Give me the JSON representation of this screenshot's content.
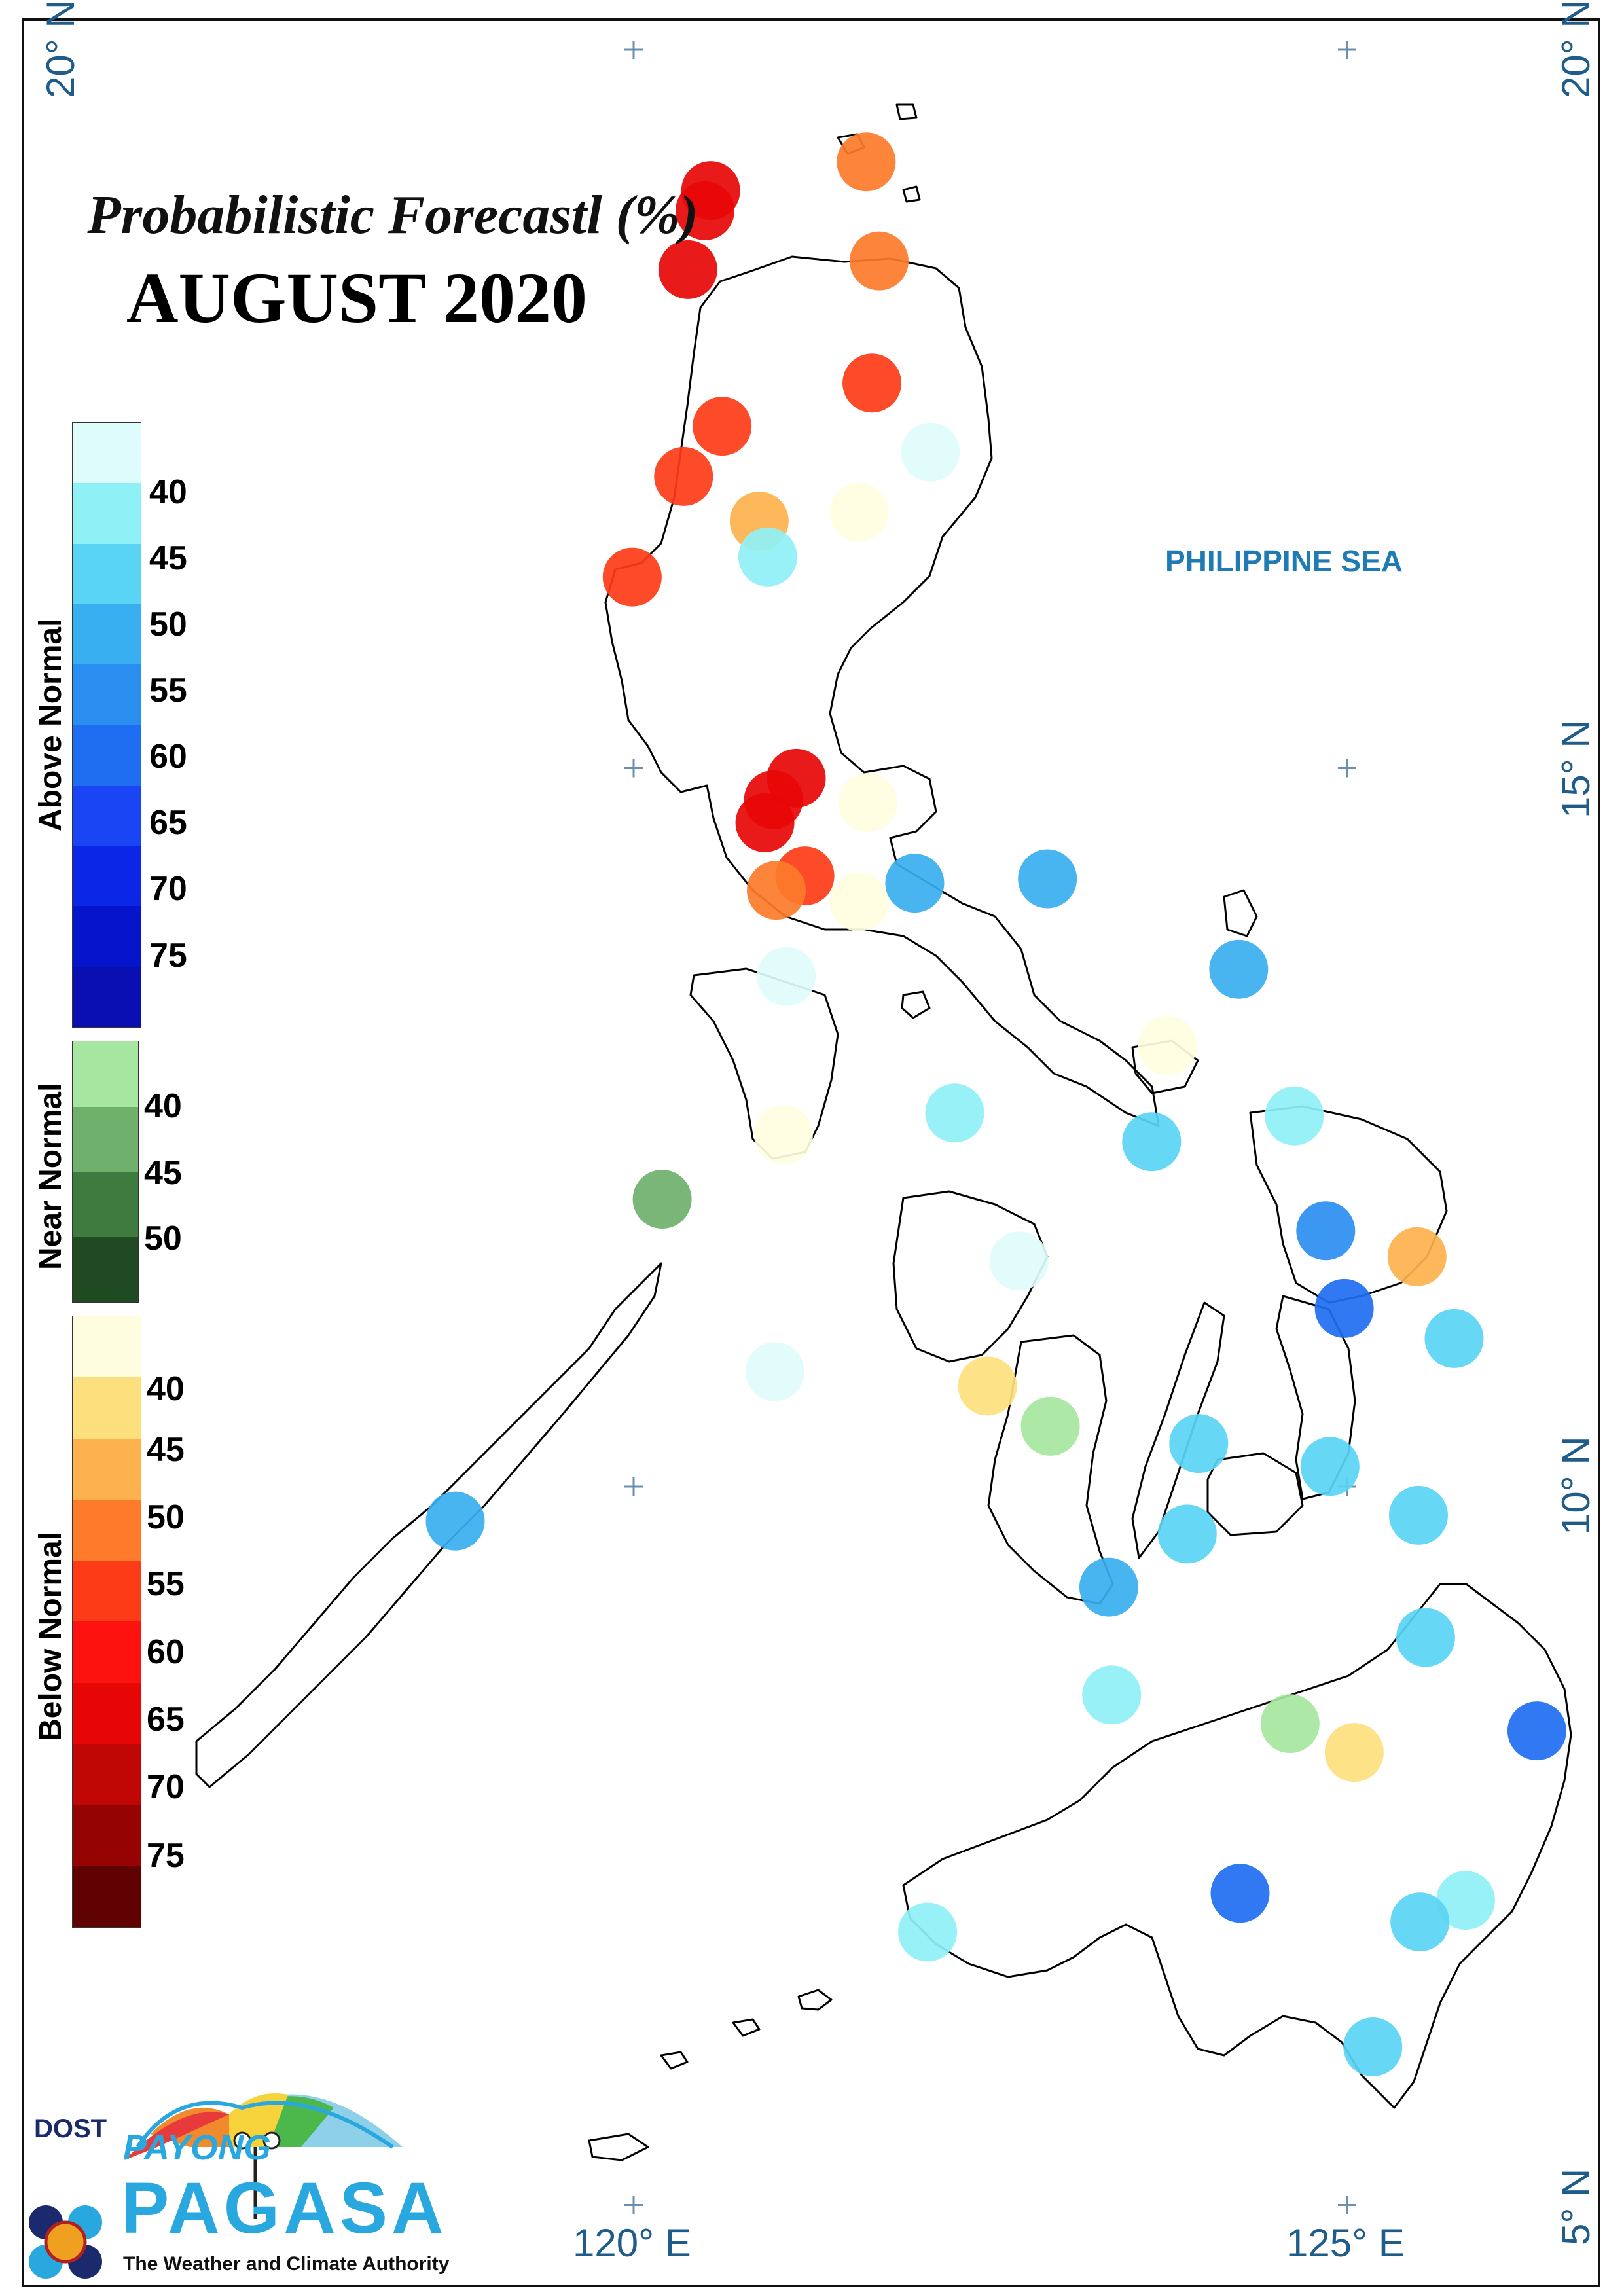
{
  "title": "Probabilistic Forecastl (%)",
  "subtitle": "AUGUST 2020",
  "sea_label": "PHILIPPINE SEA",
  "coords": {
    "lat_20_left": "20° N",
    "lat_20_right": "20° N",
    "lat_15": "15° N",
    "lat_10": "10° N",
    "lat_5": "5° N",
    "lon_120": "120° E",
    "lon_125": "125° E"
  },
  "legend": {
    "above": {
      "title": "Above Normal",
      "colors": [
        "#dffcfc",
        "#8ff0f5",
        "#5ad4f5",
        "#38aff0",
        "#2a8ef0",
        "#1f6ef2",
        "#1a45f5",
        "#0b26e6",
        "#0515cc",
        "#0a0fb3"
      ],
      "ticks": [
        "40",
        "45",
        "50",
        "55",
        "60",
        "65",
        "70",
        "75"
      ]
    },
    "near": {
      "title": "Near Normal",
      "colors": [
        "#a6e6a0",
        "#6fb06c",
        "#3f7a3e",
        "#1f4a22"
      ],
      "ticks": [
        "40",
        "45",
        "50"
      ]
    },
    "below": {
      "title": "Below Normal",
      "colors": [
        "#fffde0",
        "#fde07e",
        "#fdb24e",
        "#fd7b2a",
        "#fd3b17",
        "#fd120f",
        "#e70606",
        "#c10606",
        "#960303",
        "#600202"
      ],
      "ticks": [
        "40",
        "45",
        "50",
        "55",
        "60",
        "65",
        "70",
        "75"
      ]
    }
  },
  "logo": {
    "dost": "DOST",
    "payong": "PAYONG",
    "pagasa": "PAGASA",
    "tagline": "The Weather and Climate Authority"
  },
  "stations": [
    {
      "lon": 120.54,
      "lat": 19.02,
      "cat": "below",
      "color": "#e70606"
    },
    {
      "lon": 120.5,
      "lat": 18.88,
      "cat": "below",
      "color": "#e70606"
    },
    {
      "lon": 120.38,
      "lat": 18.47,
      "cat": "below",
      "color": "#e70606"
    },
    {
      "lon": 121.63,
      "lat": 19.22,
      "cat": "below",
      "color": "#fd7b2a"
    },
    {
      "lon": 121.72,
      "lat": 18.53,
      "cat": "below",
      "color": "#fd7b2a"
    },
    {
      "lon": 121.67,
      "lat": 17.68,
      "cat": "below",
      "color": "#fd3b17"
    },
    {
      "lon": 120.62,
      "lat": 17.38,
      "cat": "below",
      "color": "#fd3b17"
    },
    {
      "lon": 120.35,
      "lat": 17.03,
      "cat": "below",
      "color": "#fd3b17"
    },
    {
      "lon": 122.08,
      "lat": 17.2,
      "cat": "above",
      "color": "#dffcfc"
    },
    {
      "lon": 120.88,
      "lat": 16.72,
      "cat": "below",
      "color": "#fdb24e"
    },
    {
      "lon": 121.58,
      "lat": 16.78,
      "cat": "below",
      "color": "#fffde0"
    },
    {
      "lon": 120.94,
      "lat": 16.47,
      "cat": "above",
      "color": "#8ff0f5"
    },
    {
      "lon": 119.99,
      "lat": 16.33,
      "cat": "below",
      "color": "#fd3b17"
    },
    {
      "lon": 121.14,
      "lat": 14.93,
      "cat": "below",
      "color": "#e70606"
    },
    {
      "lon": 120.98,
      "lat": 14.78,
      "cat": "below",
      "color": "#e70606"
    },
    {
      "lon": 120.92,
      "lat": 14.62,
      "cat": "below",
      "color": "#e70606"
    },
    {
      "lon": 121.64,
      "lat": 14.76,
      "cat": "below",
      "color": "#fffde0"
    },
    {
      "lon": 121.2,
      "lat": 14.25,
      "cat": "below",
      "color": "#fd3b17"
    },
    {
      "lon": 121.0,
      "lat": 14.15,
      "cat": "below",
      "color": "#fd7b2a"
    },
    {
      "lon": 121.58,
      "lat": 14.07,
      "cat": "below",
      "color": "#fffde0"
    },
    {
      "lon": 121.97,
      "lat": 14.2,
      "cat": "above",
      "color": "#38aff0"
    },
    {
      "lon": 122.9,
      "lat": 14.23,
      "cat": "above",
      "color": "#38aff0"
    },
    {
      "lon": 124.24,
      "lat": 13.6,
      "cat": "above",
      "color": "#38aff0"
    },
    {
      "lon": 121.07,
      "lat": 13.55,
      "cat": "above",
      "color": "#dffcfc"
    },
    {
      "lon": 123.74,
      "lat": 13.07,
      "cat": "below",
      "color": "#fffde0"
    },
    {
      "lon": 121.05,
      "lat": 12.45,
      "cat": "below",
      "color": "#fffde0"
    },
    {
      "lon": 122.25,
      "lat": 12.6,
      "cat": "above",
      "color": "#8ff0f5"
    },
    {
      "lon": 123.63,
      "lat": 12.4,
      "cat": "above",
      "color": "#5ad4f5"
    },
    {
      "lon": 124.63,
      "lat": 12.58,
      "cat": "above",
      "color": "#8ff0f5"
    },
    {
      "lon": 120.2,
      "lat": 12.0,
      "cat": "near",
      "color": "#6fb06c"
    },
    {
      "lon": 124.85,
      "lat": 11.78,
      "cat": "above",
      "color": "#2a8ef0"
    },
    {
      "lon": 125.49,
      "lat": 11.6,
      "cat": "below",
      "color": "#fdb24e"
    },
    {
      "lon": 122.7,
      "lat": 11.57,
      "cat": "above",
      "color": "#dffcfc"
    },
    {
      "lon": 124.98,
      "lat": 11.24,
      "cat": "above",
      "color": "#1f6ef2"
    },
    {
      "lon": 125.75,
      "lat": 11.03,
      "cat": "above",
      "color": "#5ad4f5"
    },
    {
      "lon": 120.99,
      "lat": 10.8,
      "cat": "above",
      "color": "#dffcfc"
    },
    {
      "lon": 122.48,
      "lat": 10.7,
      "cat": "below",
      "color": "#fde07e"
    },
    {
      "lon": 122.92,
      "lat": 10.42,
      "cat": "near",
      "color": "#a6e6a0"
    },
    {
      "lon": 123.96,
      "lat": 10.3,
      "cat": "above",
      "color": "#5ad4f5"
    },
    {
      "lon": 124.88,
      "lat": 10.14,
      "cat": "above",
      "color": "#5ad4f5"
    },
    {
      "lon": 118.75,
      "lat": 9.76,
      "cat": "above",
      "color": "#38aff0"
    },
    {
      "lon": 125.5,
      "lat": 9.8,
      "cat": "above",
      "color": "#5ad4f5"
    },
    {
      "lon": 123.88,
      "lat": 9.67,
      "cat": "above",
      "color": "#5ad4f5"
    },
    {
      "lon": 123.33,
      "lat": 9.3,
      "cat": "above",
      "color": "#38aff0"
    },
    {
      "lon": 125.55,
      "lat": 8.95,
      "cat": "above",
      "color": "#5ad4f5"
    },
    {
      "lon": 123.35,
      "lat": 8.55,
      "cat": "above",
      "color": "#8ff0f5"
    },
    {
      "lon": 124.6,
      "lat": 8.35,
      "cat": "near",
      "color": "#a6e6a0"
    },
    {
      "lon": 125.05,
      "lat": 8.15,
      "cat": "below",
      "color": "#fde07e"
    },
    {
      "lon": 126.33,
      "lat": 8.3,
      "cat": "above",
      "color": "#1f6ef2"
    },
    {
      "lon": 124.25,
      "lat": 7.17,
      "cat": "above",
      "color": "#1f6ef2"
    },
    {
      "lon": 125.83,
      "lat": 7.12,
      "cat": "above",
      "color": "#8ff0f5"
    },
    {
      "lon": 125.51,
      "lat": 6.97,
      "cat": "above",
      "color": "#5ad4f5"
    },
    {
      "lon": 122.06,
      "lat": 6.9,
      "cat": "above",
      "color": "#8ff0f5"
    },
    {
      "lon": 125.18,
      "lat": 6.1,
      "cat": "above",
      "color": "#5ad4f5"
    }
  ]
}
